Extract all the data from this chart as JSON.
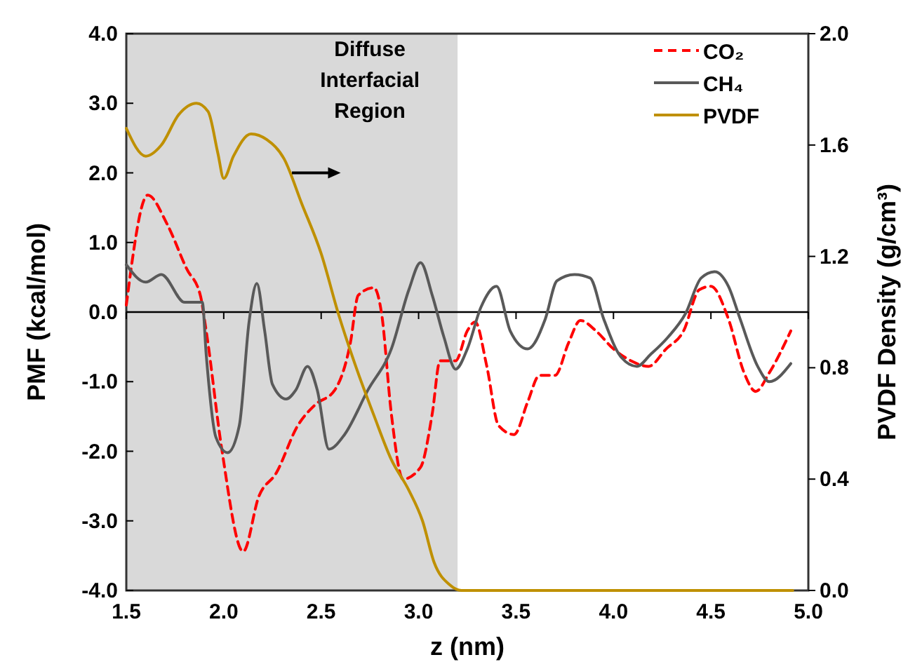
{
  "chart_data": {
    "type": "line",
    "xlabel": "z (nm)",
    "ylabel": "PMF (kcal/mol)",
    "y2label": "PVDF Density (g/cm³)",
    "xlim": [
      1.5,
      5.0
    ],
    "xticks": [
      {
        "value": 1.5,
        "label": "1.5"
      },
      {
        "value": 2,
        "label": "2.0"
      },
      {
        "value": 2.5,
        "label": "2.5"
      },
      {
        "value": 3,
        "label": "3.0"
      },
      {
        "value": 3.5,
        "label": "3.5"
      },
      {
        "value": 4,
        "label": "4.0"
      },
      {
        "value": 4.5,
        "label": "4.5"
      },
      {
        "value": 5,
        "label": "5.0"
      }
    ],
    "ylim": [
      -4,
      4
    ],
    "yticks": [
      {
        "value": -4,
        "label": "-4.0"
      },
      {
        "value": -3,
        "label": "-3.0"
      },
      {
        "value": -2,
        "label": "-2.0"
      },
      {
        "value": -1,
        "label": "-1.0"
      },
      {
        "value": 0,
        "label": "0.0"
      },
      {
        "value": 1,
        "label": "1.0"
      },
      {
        "value": 2,
        "label": "2.0"
      },
      {
        "value": 3,
        "label": "3.0"
      },
      {
        "value": 4,
        "label": "4.0"
      }
    ],
    "y2lim": [
      0,
      2
    ],
    "y2ticks": [
      {
        "value": 0,
        "label": "0.0"
      },
      {
        "value": 0.4,
        "label": "0.4"
      },
      {
        "value": 0.8,
        "label": "0.8"
      },
      {
        "value": 1.2,
        "label": "1.2"
      },
      {
        "value": 1.6,
        "label": "1.6"
      },
      {
        "value": 2,
        "label": "2.0"
      }
    ],
    "legend": "top right",
    "ref_lines": [
      {
        "axis": "y",
        "value": 0,
        "color": "#000000"
      }
    ],
    "bands": [
      {
        "axis": "x",
        "from": 1.5,
        "to": 3.2,
        "color": "#d9d9d9"
      }
    ],
    "annotations": [
      "Diffuse Interfacial Region"
    ],
    "series": [
      {
        "name": "CO₂",
        "color": "#ff0000",
        "line_style": "dashed",
        "x": [
          1.5,
          1.61,
          1.71,
          1.81,
          1.88,
          1.91,
          1.99,
          2.1,
          2.18,
          2.27,
          2.38,
          2.47,
          2.57,
          2.65,
          2.69,
          2.77,
          2.81,
          2.86,
          2.92,
          3.01,
          3.07,
          3.11,
          3.19,
          3.25,
          3.29,
          3.35,
          3.41,
          3.49,
          3.56,
          3.62,
          3.7,
          3.77,
          3.83,
          3.91,
          4.0,
          4.09,
          4.18,
          4.27,
          4.36,
          4.44,
          4.5,
          4.59,
          4.67,
          4.73,
          4.8,
          4.91
        ],
        "values": [
          0.1,
          1.68,
          1.26,
          0.62,
          0.24,
          -0.27,
          -1.97,
          -3.44,
          -2.65,
          -2.31,
          -1.63,
          -1.33,
          -1.12,
          -0.44,
          0.24,
          0.35,
          -0.02,
          -1.46,
          -2.4,
          -2.23,
          -1.46,
          -0.7,
          -0.7,
          -0.27,
          -0.14,
          -0.78,
          -1.63,
          -1.76,
          -1.29,
          -0.91,
          -0.91,
          -0.44,
          -0.12,
          -0.27,
          -0.53,
          -0.7,
          -0.78,
          -0.53,
          -0.27,
          0.32,
          0.37,
          -0.1,
          -0.87,
          -1.14,
          -0.87,
          -0.27
        ]
      },
      {
        "name": "CH₄",
        "color": "#595959",
        "line_style": "solid",
        "x": [
          1.5,
          1.6,
          1.68,
          1.8,
          1.89,
          1.91,
          1.96,
          2.02,
          2.08,
          2.13,
          2.17,
          2.21,
          2.25,
          2.32,
          2.37,
          2.43,
          2.48,
          2.54,
          2.62,
          2.74,
          2.86,
          2.95,
          3.01,
          3.07,
          3.13,
          3.19,
          3.25,
          3.32,
          3.4,
          3.47,
          3.56,
          3.65,
          3.71,
          3.8,
          3.88,
          3.95,
          4.04,
          4.12,
          4.19,
          4.28,
          4.37,
          4.45,
          4.52,
          4.59,
          4.65,
          4.74,
          4.8,
          4.91
        ],
        "values": [
          0.68,
          0.43,
          0.54,
          0.14,
          0.14,
          -0.61,
          -1.8,
          -2.02,
          -1.63,
          -0.14,
          0.41,
          -0.27,
          -1.04,
          -1.25,
          -1.12,
          -0.78,
          -1.12,
          -1.97,
          -1.76,
          -1.12,
          -0.53,
          0.32,
          0.71,
          0.24,
          -0.36,
          -0.82,
          -0.53,
          0.07,
          0.37,
          -0.27,
          -0.53,
          -0.1,
          0.45,
          0.54,
          0.49,
          -0.1,
          -0.65,
          -0.78,
          -0.61,
          -0.36,
          -0.02,
          0.49,
          0.58,
          0.37,
          -0.1,
          -0.78,
          -1.0,
          -0.74
        ]
      },
      {
        "name": "PVDF",
        "color": "#bf9000",
        "line_style": "solid",
        "axis": "y2",
        "x": [
          1.5,
          1.6,
          1.68,
          1.77,
          1.86,
          1.92,
          1.97,
          2.0,
          2.05,
          2.14,
          2.22,
          2.31,
          2.4,
          2.5,
          2.59,
          2.68,
          2.77,
          2.86,
          2.95,
          3.02,
          3.08,
          3.16,
          3.22,
          4.92
        ],
        "values": [
          1.66,
          1.56,
          1.6,
          1.71,
          1.75,
          1.72,
          1.57,
          1.48,
          1.56,
          1.64,
          1.62,
          1.55,
          1.39,
          1.21,
          0.99,
          0.8,
          0.63,
          0.47,
          0.36,
          0.25,
          0.1,
          0.02,
          0,
          0
        ]
      }
    ]
  }
}
